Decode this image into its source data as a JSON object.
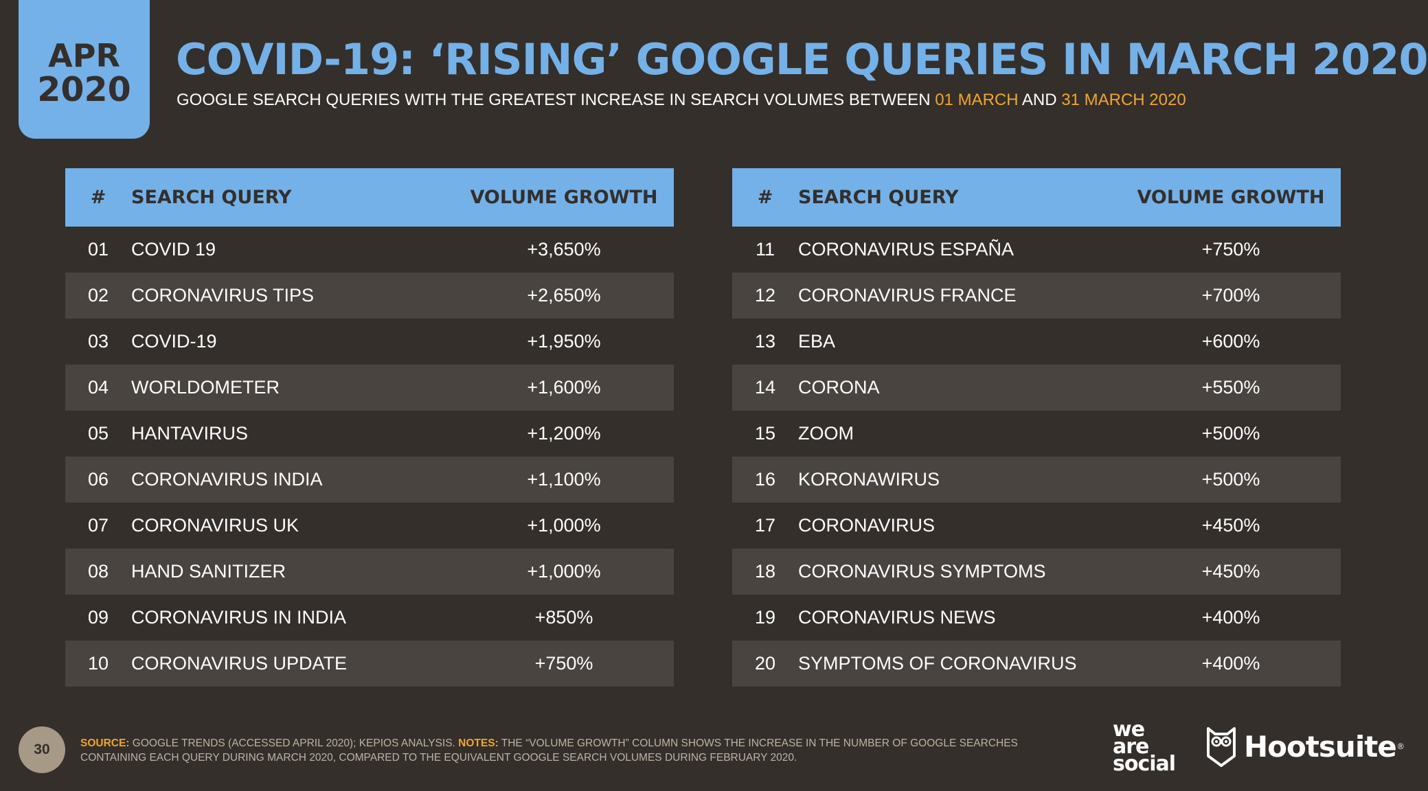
{
  "date_tab": {
    "month": "APR",
    "year": "2020"
  },
  "title": "COVID-19: ‘RISING’ GOOGLE QUERIES IN MARCH 2020",
  "subtitle": {
    "prefix": "GOOGLE SEARCH QUERIES WITH THE GREATEST INCREASE IN SEARCH VOLUMES BETWEEN",
    "date_start": "01 MARCH",
    "conjunction": "AND",
    "date_end": "31 MARCH 2020"
  },
  "table_headers": {
    "num": "#",
    "query": "SEARCH QUERY",
    "volume": "VOLUME GROWTH"
  },
  "left_rows": [
    {
      "num": "01",
      "query": "COVID 19",
      "volume": "+3,650%"
    },
    {
      "num": "02",
      "query": "CORONAVIRUS TIPS",
      "volume": "+2,650%"
    },
    {
      "num": "03",
      "query": "COVID-19",
      "volume": "+1,950%"
    },
    {
      "num": "04",
      "query": "WORLDOMETER",
      "volume": "+1,600%"
    },
    {
      "num": "05",
      "query": "HANTAVIRUS",
      "volume": "+1,200%"
    },
    {
      "num": "06",
      "query": "CORONAVIRUS INDIA",
      "volume": "+1,100%"
    },
    {
      "num": "07",
      "query": "CORONAVIRUS UK",
      "volume": "+1,000%"
    },
    {
      "num": "08",
      "query": "HAND SANITIZER",
      "volume": "+1,000%"
    },
    {
      "num": "09",
      "query": "CORONAVIRUS IN INDIA",
      "volume": "+850%"
    },
    {
      "num": "10",
      "query": "CORONAVIRUS UPDATE",
      "volume": "+750%"
    }
  ],
  "right_rows": [
    {
      "num": "11",
      "query": "CORONAVIRUS ESPAÑA",
      "volume": "+750%"
    },
    {
      "num": "12",
      "query": "CORONAVIRUS FRANCE",
      "volume": "+700%"
    },
    {
      "num": "13",
      "query": "EBA",
      "volume": "+600%"
    },
    {
      "num": "14",
      "query": "CORONA",
      "volume": "+550%"
    },
    {
      "num": "15",
      "query": "ZOOM",
      "volume": "+500%"
    },
    {
      "num": "16",
      "query": "KORONAWIRUS",
      "volume": "+500%"
    },
    {
      "num": "17",
      "query": "CORONAVIRUS",
      "volume": "+450%"
    },
    {
      "num": "18",
      "query": "CORONAVIRUS SYMPTOMS",
      "volume": "+450%"
    },
    {
      "num": "19",
      "query": "CORONAVIRUS NEWS",
      "volume": "+400%"
    },
    {
      "num": "20",
      "query": "SYMPTOMS OF CORONAVIRUS",
      "volume": "+400%"
    }
  ],
  "footer": {
    "page_number": "30",
    "source_label": "SOURCE:",
    "source_text": "GOOGLE TRENDS (ACCESSED APRIL 2020); KEPIOS ANALYSIS.",
    "notes_label": "NOTES:",
    "notes_line1": "THE “VOLUME GROWTH” COLUMN SHOWS THE INCREASE IN THE NUMBER OF GOOGLE SEARCHES",
    "notes_line2": "CONTAINING EACH QUERY DURING MARCH 2020, COMPARED TO THE EQUIVALENT GOOGLE SEARCH VOLUMES DURING FEBRUARY 2020."
  },
  "logos": {
    "we_are_social": [
      "we",
      "are",
      "social"
    ],
    "hootsuite": "Hootsuite",
    "hootsuite_mark": "®"
  },
  "colors": {
    "background": "#352f2c",
    "accent_blue": "#74b1e8",
    "highlight_orange": "#f2a52e",
    "row_alt": "#4a4441"
  }
}
